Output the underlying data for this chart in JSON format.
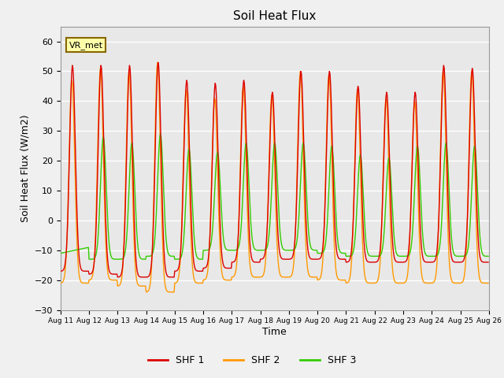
{
  "title": "Soil Heat Flux",
  "xlabel": "Time",
  "ylabel": "Soil Heat Flux (W/m2)",
  "ylim": [
    -30,
    65
  ],
  "yticks": [
    -30,
    -20,
    -10,
    0,
    10,
    20,
    30,
    40,
    50,
    60
  ],
  "background_color": "#f0f0f0",
  "plot_bg_color": "#e8e8e8",
  "grid_color": "#ffffff",
  "shf1_color": "#dd0000",
  "shf2_color": "#ff9900",
  "shf3_color": "#33cc00",
  "legend_label1": "SHF 1",
  "legend_label2": "SHF 2",
  "legend_label3": "SHF 3",
  "site_label": "VR_met",
  "start_day": 11,
  "n_days": 15,
  "points_per_day": 48,
  "shf1_peaks": [
    52,
    52,
    52,
    53,
    47,
    46,
    47,
    43,
    50,
    50,
    45,
    43,
    43,
    52,
    51
  ],
  "shf1_troughs": [
    -17,
    -18,
    -19,
    -19,
    -17,
    -16,
    -14,
    -13,
    -13,
    -13,
    -14,
    -14,
    -14,
    -14,
    -14
  ],
  "shf2_peaks": [
    47,
    51,
    50,
    53,
    44,
    41,
    45,
    42,
    50,
    49,
    44,
    41,
    40,
    50,
    50
  ],
  "shf2_troughs": [
    -21,
    -20,
    -22,
    -24,
    -21,
    -20,
    -19,
    -19,
    -19,
    -20,
    -21,
    -21,
    -21,
    -21,
    -21
  ],
  "shf3_peaks": [
    0,
    28,
    26,
    29,
    24,
    23,
    26,
    26,
    26,
    25,
    22,
    21,
    25,
    26,
    25
  ],
  "shf3_troughs": [
    -11,
    -13,
    -13,
    -12,
    -13,
    -10,
    -10,
    -10,
    -10,
    -11,
    -12,
    -12,
    -12,
    -12,
    -12
  ],
  "shf1_phase": 0.42,
  "shf2_phase": 0.4,
  "shf3_phase": 0.5
}
